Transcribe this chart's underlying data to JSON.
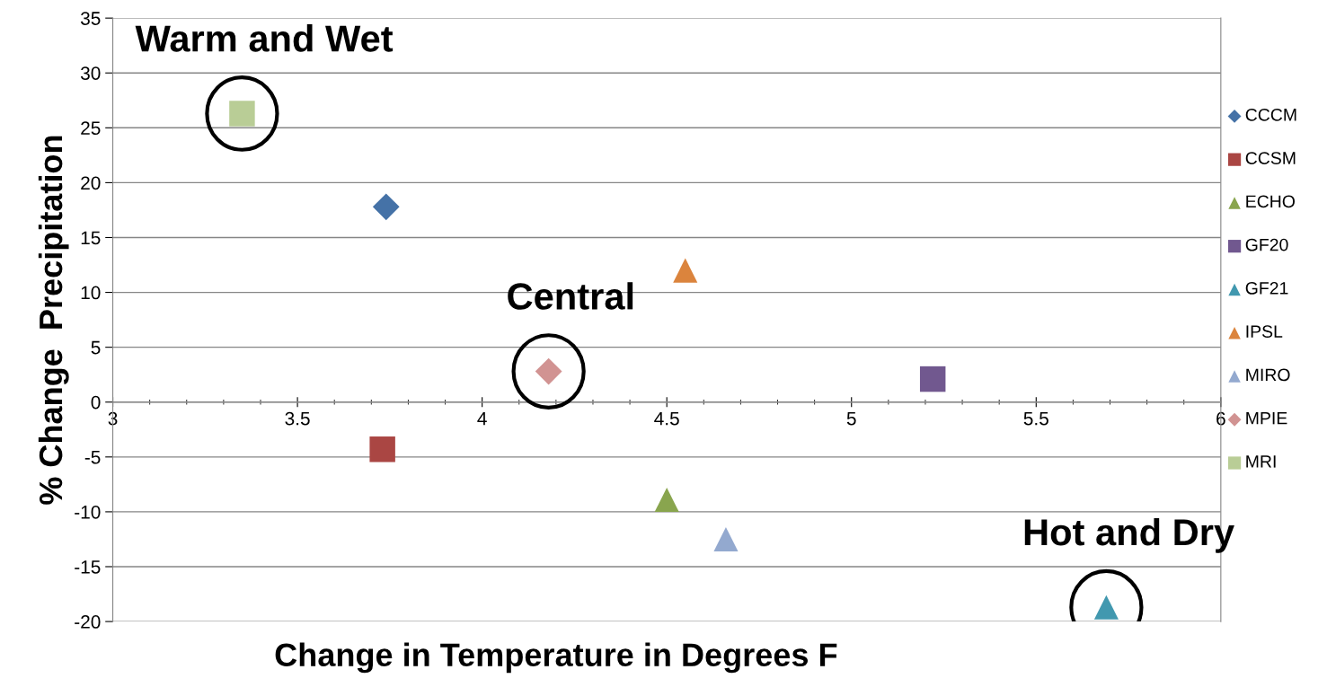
{
  "chart_data": {
    "type": "scatter",
    "xlabel": "Change in Temperature in Degrees F",
    "ylabel": "% Change  Precipitation",
    "series": [
      {
        "name": "CCCM",
        "color": "#4572a7",
        "marker": "diamond",
        "x": [
          3.74
        ],
        "values": [
          17.8
        ]
      },
      {
        "name": "CCSM",
        "color": "#aa4643",
        "marker": "square",
        "x": [
          3.73
        ],
        "values": [
          -4.3
        ]
      },
      {
        "name": "ECHO",
        "color": "#89a54e",
        "marker": "triangle",
        "x": [
          4.5
        ],
        "values": [
          -8.9
        ]
      },
      {
        "name": "GF20",
        "color": "#71588f",
        "marker": "square",
        "x": [
          5.22
        ],
        "values": [
          2.1
        ]
      },
      {
        "name": "GF21",
        "color": "#4198af",
        "marker": "triangle",
        "x": [
          5.69
        ],
        "values": [
          -18.7
        ]
      },
      {
        "name": "IPSL",
        "color": "#db843d",
        "marker": "triangle",
        "x": [
          4.55
        ],
        "values": [
          12.0
        ]
      },
      {
        "name": "MIRO",
        "color": "#93a9cf",
        "marker": "triangle",
        "x": [
          4.66
        ],
        "values": [
          -12.5
        ]
      },
      {
        "name": "MPIE",
        "color": "#d19392",
        "marker": "diamond",
        "x": [
          4.18
        ],
        "values": [
          2.8
        ]
      },
      {
        "name": "MRI",
        "color": "#b9cd96",
        "marker": "square",
        "x": [
          3.35
        ],
        "values": [
          26.3
        ]
      }
    ],
    "annotations": [
      {
        "text": "Warm and Wet",
        "x": 3.35,
        "y": 26.3
      },
      {
        "text": "Central",
        "x": 4.18,
        "y": 2.8
      },
      {
        "text": "Hot and Dry",
        "x": 5.69,
        "y": -18.7
      }
    ],
    "xlim": [
      3,
      6
    ],
    "xticks": [
      3,
      3.5,
      4,
      4.5,
      5,
      5.5,
      6
    ],
    "ylim": [
      -20,
      35
    ],
    "yticks": [
      -20,
      -15,
      -10,
      -5,
      0,
      5,
      10,
      15,
      20,
      25,
      30,
      35
    ],
    "grid": "y",
    "legend": "right"
  }
}
